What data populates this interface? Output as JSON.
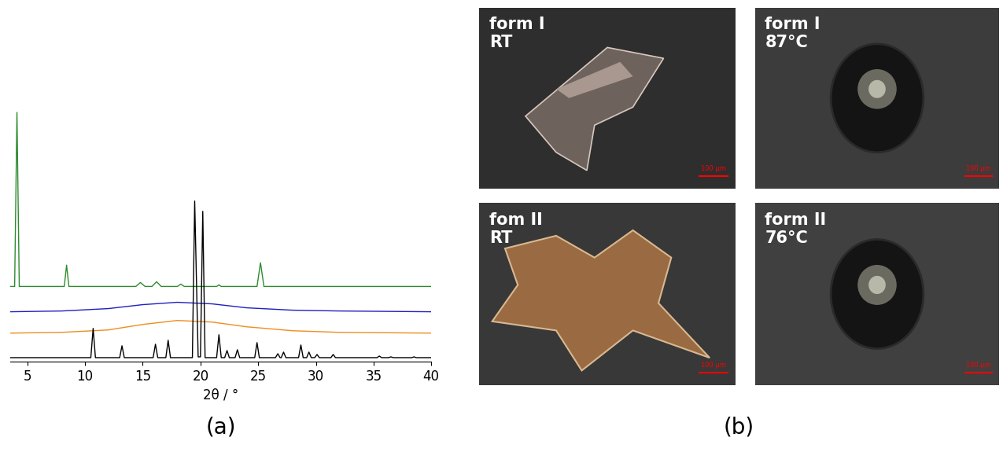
{
  "chart_data": {
    "type": "line",
    "x_label": "2θ / °",
    "xlim": [
      3.5,
      40
    ],
    "xticks": [
      5,
      10,
      15,
      20,
      25,
      30,
      35,
      40
    ],
    "ylim": [
      0,
      320
    ],
    "tick_labels": "x",
    "grid": false,
    "series": [
      {
        "color": "#2e8b2e",
        "x": [
          3.5,
          3.9,
          4.1,
          4.3,
          8.2,
          8.4,
          8.6,
          14.4,
          14.8,
          15.2,
          15.8,
          16.2,
          16.6,
          18.0,
          18.3,
          18.6,
          21.4,
          21.6,
          21.8,
          24.9,
          25.2,
          25.5,
          40
        ],
        "values": [
          95,
          95,
          315,
          95,
          95,
          122,
          95,
          95,
          100,
          95,
          95,
          101,
          95,
          95,
          98,
          95,
          95,
          97,
          95,
          95,
          125,
          95,
          95
        ]
      },
      {
        "color": "#1f1fbf",
        "x": [
          3.5,
          8,
          12,
          15,
          18,
          21,
          24,
          28,
          32,
          40
        ],
        "values": [
          63,
          64,
          67,
          72,
          75,
          73,
          68,
          65,
          64,
          63
        ]
      },
      {
        "color": "#f08c1e",
        "x": [
          3.5,
          8,
          12,
          15,
          18,
          21,
          24,
          28,
          32,
          40
        ],
        "values": [
          36,
          37,
          40,
          47,
          52,
          50,
          44,
          39,
          37,
          36
        ]
      },
      {
        "color": "#000000",
        "x": [
          3.5,
          10.5,
          10.7,
          10.9,
          13.0,
          13.2,
          13.4,
          15.9,
          16.1,
          16.3,
          17.0,
          17.2,
          17.4,
          19.3,
          19.5,
          19.8,
          20.0,
          20.2,
          20.4,
          21.4,
          21.6,
          21.8,
          22.1,
          22.3,
          22.5,
          23.0,
          23.2,
          23.4,
          24.7,
          24.9,
          25.1,
          26.5,
          26.7,
          26.9,
          27.0,
          27.2,
          27.4,
          28.5,
          28.7,
          28.9,
          29.2,
          29.4,
          29.6,
          29.9,
          30.1,
          30.3,
          31.3,
          31.5,
          31.7,
          35.3,
          35.5,
          35.7,
          36.3,
          36.5,
          36.7,
          38.3,
          38.5,
          38.7,
          40
        ],
        "values": [
          5,
          5,
          42,
          5,
          5,
          20,
          5,
          5,
          22,
          5,
          5,
          27,
          5,
          5,
          203,
          6,
          6,
          190,
          5,
          5,
          34,
          5,
          5,
          14,
          5,
          5,
          15,
          5,
          5,
          24,
          5,
          5,
          10,
          5,
          5,
          12,
          5,
          5,
          21,
          5,
          5,
          12,
          5,
          5,
          9,
          5,
          5,
          9,
          5,
          5,
          7,
          5,
          5,
          6,
          5,
          5,
          6,
          5,
          5
        ]
      }
    ]
  },
  "panel_labels": [
    "(a)",
    "(b)"
  ],
  "micrographs": [
    {
      "form": "form I",
      "temperature": "RT",
      "scale_bar": "100 µm"
    },
    {
      "form": "form I",
      "temperature": "87°C",
      "scale_bar": "100 µm"
    },
    {
      "form": "fom II",
      "temperature": "RT",
      "scale_bar": "100 µm"
    },
    {
      "form": "form II",
      "temperature": "76°C",
      "scale_bar": "100 µm"
    }
  ]
}
